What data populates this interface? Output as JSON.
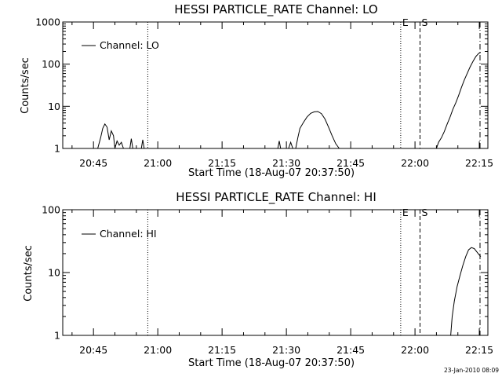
{
  "chart_data": [
    {
      "type": "line",
      "title": "HESSI PARTICLE_RATE Channel: LO",
      "xlabel": "Start Time (18-Aug-07 20:37:50)",
      "ylabel": "Counts/sec",
      "y_scale": "log",
      "ylim": [
        1,
        1000
      ],
      "xlim": [
        "20:37:50",
        "22:17:00"
      ],
      "x_ticks": [
        "20:45",
        "21:00",
        "21:15",
        "21:30",
        "21:45",
        "22:00",
        "22:15"
      ],
      "y_ticks": [
        "1",
        "10",
        "100",
        "1000"
      ],
      "legend": {
        "label": "Channel: LO",
        "placement": "top-left"
      },
      "markers": [
        {
          "time": "20:57:40",
          "style": "dotted",
          "label": ""
        },
        {
          "time": "21:56:40",
          "style": "dotted",
          "label": "E"
        },
        {
          "time": "22:01:10",
          "style": "dashed",
          "label": "S"
        },
        {
          "time": "22:15:10",
          "style": "dash-dot",
          "label": ""
        }
      ],
      "series": [
        {
          "name": "Channel: LO",
          "segments": [
            {
              "x": [
                "20:46:00",
                "20:46:40",
                "20:47:10",
                "20:47:40",
                "20:48:10",
                "20:48:40",
                "20:49:10",
                "20:49:40",
                "20:50:00",
                "20:50:30",
                "20:51:00",
                "20:51:30",
                "20:52:00"
              ],
              "y": [
                1,
                1.8,
                3.0,
                3.8,
                3.2,
                1.6,
                2.6,
                2.0,
                1,
                1.5,
                1.2,
                1.4,
                1
              ]
            },
            {
              "x": [
                "20:53:30",
                "20:53:50",
                "20:54:10"
              ],
              "y": [
                1,
                1.7,
                1
              ]
            },
            {
              "x": [
                "20:56:10",
                "20:56:30",
                "20:56:50"
              ],
              "y": [
                1,
                1.6,
                1
              ]
            },
            {
              "x": [
                "21:28:00",
                "21:28:20",
                "21:28:40"
              ],
              "y": [
                1,
                1.5,
                1
              ]
            },
            {
              "x": [
                "21:30:30",
                "21:31:00",
                "21:31:30"
              ],
              "y": [
                1,
                1.4,
                1
              ]
            },
            {
              "x": [
                "21:32:10",
                "21:32:40",
                "21:33:10",
                "21:34:00",
                "21:34:50",
                "21:35:40",
                "21:36:30",
                "21:37:20",
                "21:38:10",
                "21:39:00",
                "21:39:50",
                "21:40:40",
                "21:41:30",
                "21:42:20"
              ],
              "y": [
                1,
                1.8,
                3.0,
                4.2,
                5.6,
                6.8,
                7.4,
                7.5,
                6.7,
                5.0,
                3.2,
                2.0,
                1.3,
                1
              ]
            },
            {
              "x": [
                "22:05:00",
                "22:05:30",
                "22:06:10",
                "22:06:50",
                "22:07:30",
                "22:08:10",
                "22:08:50",
                "22:09:30",
                "22:10:10",
                "22:10:50",
                "22:11:30",
                "22:12:10",
                "22:12:50",
                "22:13:30",
                "22:14:10",
                "22:14:50",
                "22:15:20"
              ],
              "y": [
                1,
                1.4,
                1.8,
                2.5,
                3.8,
                5.5,
                8.5,
                12,
                18,
                28,
                42,
                60,
                85,
                115,
                150,
                180,
                190
              ]
            }
          ]
        }
      ]
    },
    {
      "type": "line",
      "title": "HESSI PARTICLE_RATE Channel: HI",
      "xlabel": "Start Time (18-Aug-07 20:37:50)",
      "ylabel": "Counts/sec",
      "y_scale": "log",
      "ylim": [
        1,
        100
      ],
      "xlim": [
        "20:37:50",
        "22:17:00"
      ],
      "x_ticks": [
        "20:45",
        "21:00",
        "21:15",
        "21:30",
        "21:45",
        "22:00",
        "22:15"
      ],
      "y_ticks": [
        "1",
        "10",
        "100"
      ],
      "legend": {
        "label": "Channel: HI",
        "placement": "top-left"
      },
      "markers": [
        {
          "time": "20:57:40",
          "style": "dotted",
          "label": ""
        },
        {
          "time": "21:56:40",
          "style": "dotted",
          "label": "E"
        },
        {
          "time": "22:01:10",
          "style": "dashed",
          "label": "S"
        },
        {
          "time": "22:15:10",
          "style": "dash-dot",
          "label": ""
        }
      ],
      "series": [
        {
          "name": "Channel: HI",
          "segments": [
            {
              "x": [
                "22:08:20",
                "22:08:40",
                "22:09:10",
                "22:09:50",
                "22:10:30",
                "22:11:10",
                "22:11:50",
                "22:12:30",
                "22:13:10",
                "22:13:50",
                "22:14:30",
                "22:15:00",
                "22:15:20"
              ],
              "y": [
                1,
                2.0,
                3.5,
                6.0,
                9.0,
                13,
                18,
                23,
                25,
                24,
                21,
                19,
                18
              ]
            }
          ]
        }
      ]
    }
  ],
  "footer": {
    "timestamp": "23-Jan-2010 08:09"
  }
}
